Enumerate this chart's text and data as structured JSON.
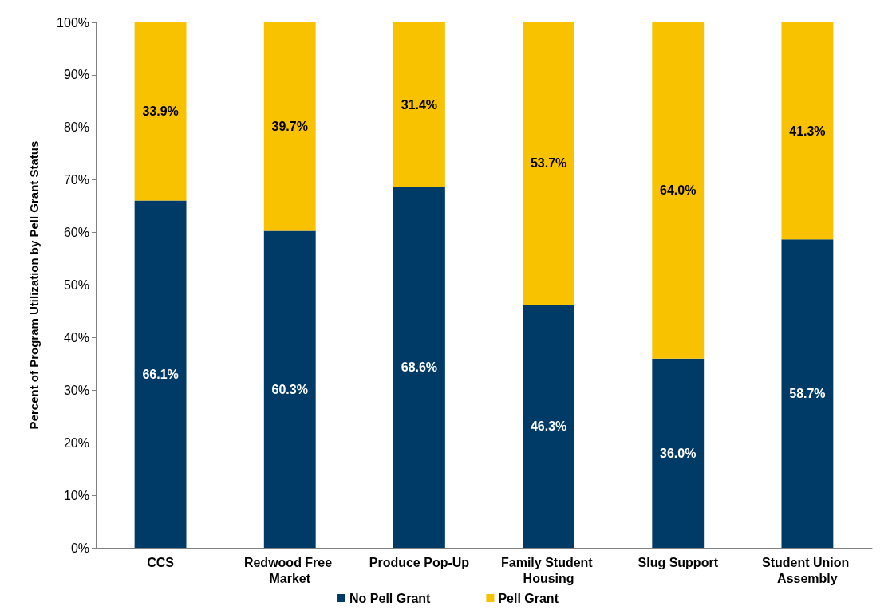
{
  "chart_data": {
    "type": "bar",
    "stacked": true,
    "ylabel": "Percent of Program Utilization by Pell Grant Status",
    "categories": [
      "CCS",
      "Redwood Free Market",
      "Produce Pop-Up",
      "Family Student Housing",
      "Slug Support",
      "Student Union Assembly"
    ],
    "series": [
      {
        "name": "No Pell Grant",
        "color": "#003a66",
        "values": [
          66.1,
          60.3,
          68.6,
          46.3,
          36.0,
          58.7
        ],
        "value_labels": [
          "66.1%",
          "60.3%",
          "68.6%",
          "46.3%",
          "36.0%",
          "58.7%"
        ]
      },
      {
        "name": "Pell Grant",
        "color": "#f9c200",
        "values": [
          33.9,
          39.7,
          31.4,
          53.7,
          64.0,
          41.3
        ],
        "value_labels": [
          "33.9%",
          "39.7%",
          "31.4%",
          "53.7%",
          "64.0%",
          "41.3%"
        ]
      }
    ],
    "ylim": [
      0,
      100
    ],
    "yticks": [
      {
        "value": 0,
        "label": "0%"
      },
      {
        "value": 10,
        "label": "10%"
      },
      {
        "value": 20,
        "label": "20%"
      },
      {
        "value": 30,
        "label": "30%"
      },
      {
        "value": 40,
        "label": "40%"
      },
      {
        "value": 50,
        "label": "50%"
      },
      {
        "value": 60,
        "label": "60%"
      },
      {
        "value": 70,
        "label": "70%"
      },
      {
        "value": 80,
        "label": "80%"
      },
      {
        "value": 90,
        "label": "90%"
      },
      {
        "value": 100,
        "label": "100%"
      }
    ],
    "grid": false,
    "legend": "bottom"
  }
}
